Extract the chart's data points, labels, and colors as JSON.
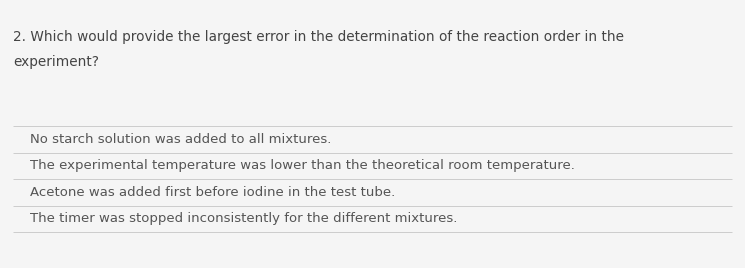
{
  "question_line1": "2. Which would provide the largest error in the determination of the reaction order in the",
  "question_line2": "experiment?",
  "options": [
    "No starch solution was added to all mixtures.",
    "The experimental temperature was lower than the theoretical room temperature.",
    "Acetone was added first before iodine in the test tube.",
    "The timer was stopped inconsistently for the different mixtures."
  ],
  "bg_color": "#f5f5f5",
  "question_color": "#444444",
  "option_color": "#555555",
  "line_color": "#cccccc",
  "question_fontsize": 9.8,
  "option_fontsize": 9.5,
  "fig_width": 7.45,
  "fig_height": 2.68,
  "dpi": 100
}
